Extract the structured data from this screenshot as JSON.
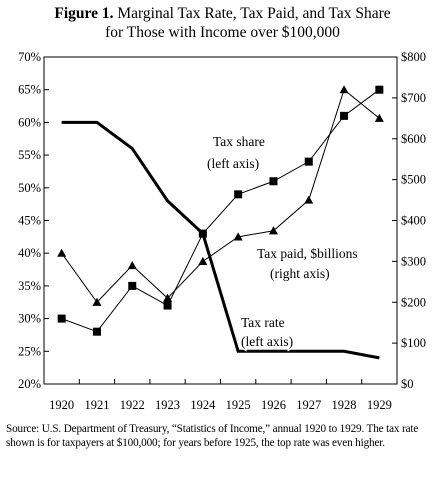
{
  "figure": {
    "number": "Figure 1.",
    "title": "Marginal Tax Rate, Tax Paid, and Tax Share",
    "title_line2": "for Those with Income over $100,000"
  },
  "source": "Source: U.S. Department of Treasury, “Statistics of Income,” annual 1920 to 1929. The tax rate shown is for taxpayers at $100,000; for years before 1925, the top rate was even higher.",
  "chart_data": {
    "type": "line",
    "categories": [
      "1920",
      "1921",
      "1922",
      "1923",
      "1924",
      "1925",
      "1926",
      "1927",
      "1928",
      "1929"
    ],
    "y_left": {
      "ticks": [
        "20%",
        "25%",
        "30%",
        "35%",
        "40%",
        "45%",
        "50%",
        "55%",
        "60%",
        "65%",
        "70%"
      ],
      "ylim": [
        20,
        70
      ]
    },
    "y_right": {
      "ticks": [
        "$0",
        "$100",
        "$200",
        "$300",
        "$400",
        "$500",
        "$600",
        "$700",
        "$800"
      ],
      "ylim": [
        0,
        800
      ]
    },
    "series": [
      {
        "id": "tax_rate",
        "axis": "left",
        "marker": "none",
        "line_width": 3,
        "label_lines": [
          "Tax rate",
          "(left axis)"
        ],
        "values": [
          60,
          60,
          56,
          48,
          43,
          25,
          25,
          25,
          25,
          24
        ]
      },
      {
        "id": "tax_share",
        "axis": "left",
        "marker": "square",
        "line_width": 1,
        "label_lines": [
          "Tax share",
          "(left axis)"
        ],
        "values": [
          30,
          28,
          35,
          32,
          43,
          49,
          51,
          54,
          61,
          65
        ]
      },
      {
        "id": "tax_paid",
        "axis": "right",
        "marker": "triangle",
        "line_width": 1,
        "label_lines": [
          "Tax paid, $billions",
          "(right axis)"
        ],
        "values": [
          320,
          200,
          290,
          210,
          300,
          360,
          375,
          450,
          720,
          650
        ]
      }
    ]
  }
}
